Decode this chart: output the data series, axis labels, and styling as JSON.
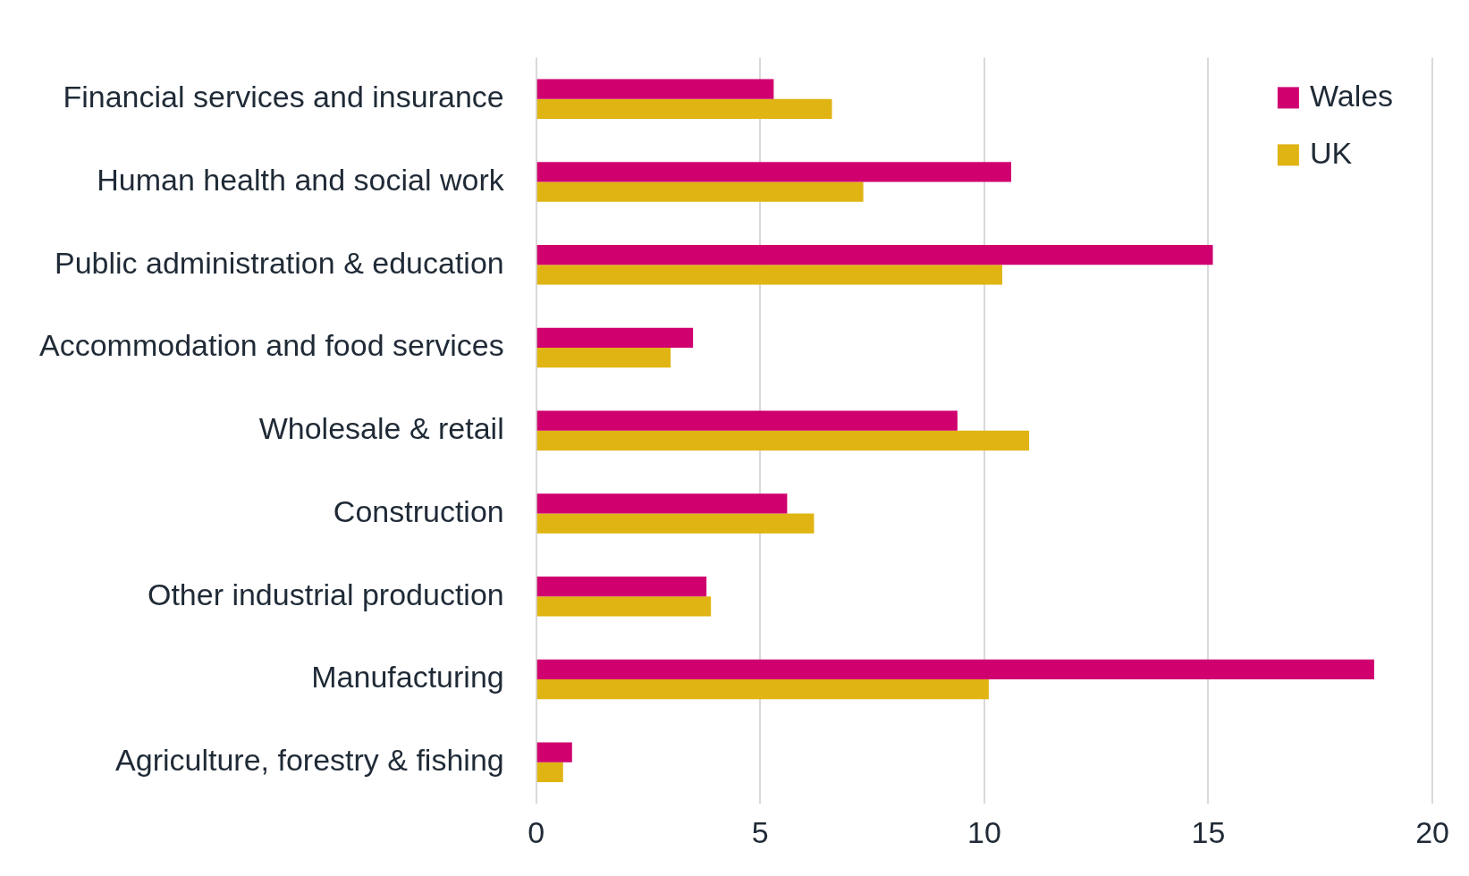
{
  "chart_data": {
    "type": "bar",
    "orientation": "horizontal",
    "categories": [
      "Financial services and insurance",
      "Human health and social work",
      "Public administration & education",
      "Accommodation and food services",
      "Wholesale & retail",
      "Construction",
      "Other industrial production",
      "Manufacturing",
      "Agriculture, forestry & fishing"
    ],
    "series": [
      {
        "name": "Wales",
        "color": "#d0006f",
        "values": [
          5.3,
          10.6,
          15.1,
          3.5,
          9.4,
          5.6,
          3.8,
          18.7,
          0.8
        ]
      },
      {
        "name": "UK",
        "color": "#e0b412",
        "values": [
          6.6,
          7.3,
          10.4,
          3.0,
          11.0,
          6.2,
          3.9,
          10.1,
          0.6
        ]
      }
    ],
    "xlim": [
      0,
      20
    ],
    "xticks": [
      0,
      5,
      10,
      15,
      20
    ],
    "grid": "x",
    "legend": "top right"
  }
}
